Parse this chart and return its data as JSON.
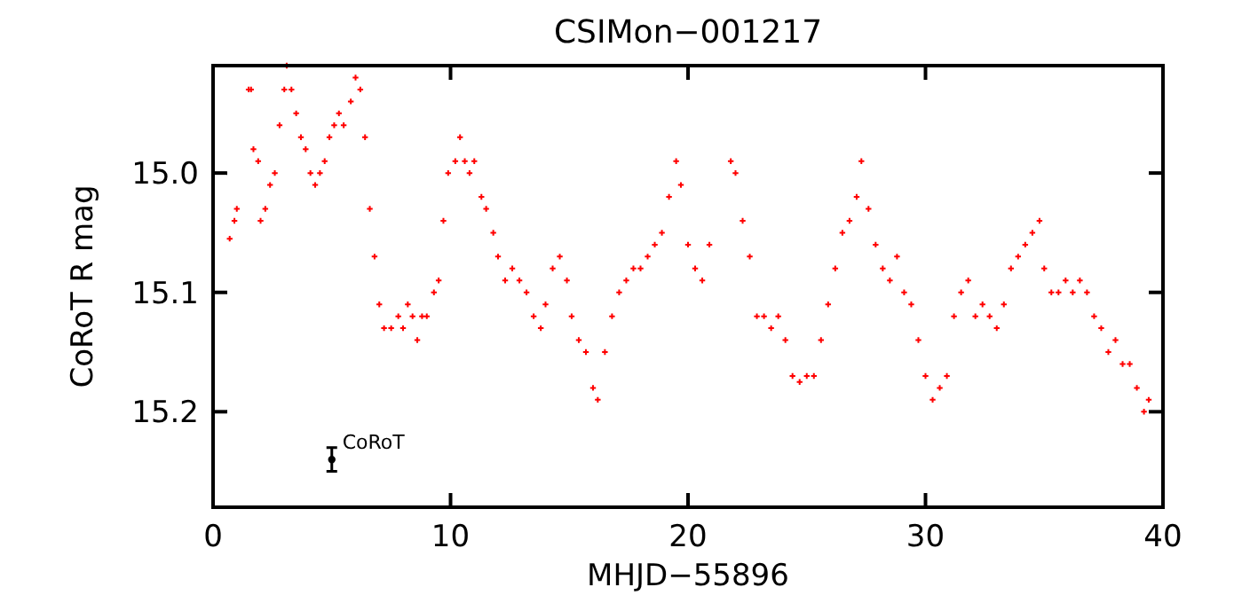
{
  "chart_data": {
    "type": "scatter",
    "title": "CSIMon−001217",
    "xlabel": "MHJD−55896",
    "ylabel": "CoRoT R mag",
    "xlim": [
      0,
      40
    ],
    "ylim": [
      15.28,
      14.91
    ],
    "xticks": [
      0,
      10,
      20,
      30,
      40
    ],
    "yticks": [
      {
        "value": 15.0,
        "label": "15.0"
      },
      {
        "value": 15.1,
        "label": "15.1"
      },
      {
        "value": 15.2,
        "label": "15.2"
      }
    ],
    "marker": "cross",
    "grid": false,
    "series": [
      {
        "color": "#ff0000",
        "x": [
          0.7,
          0.9,
          1.0,
          1.5,
          1.6,
          1.7,
          1.9,
          2.0,
          2.2,
          2.4,
          2.6,
          2.8,
          3.0,
          3.1,
          3.3,
          3.5,
          3.7,
          3.9,
          4.1,
          4.3,
          4.5,
          4.7,
          4.9,
          5.1,
          5.3,
          5.5,
          5.8,
          6.0,
          6.2,
          6.4,
          6.6,
          6.8,
          7.0,
          7.2,
          7.5,
          7.8,
          8.0,
          8.2,
          8.4,
          8.6,
          8.8,
          9.0,
          9.3,
          9.5,
          9.7,
          9.9,
          10.2,
          10.4,
          10.6,
          10.8,
          11.0,
          11.3,
          11.5,
          11.8,
          12.0,
          12.3,
          12.6,
          12.9,
          13.2,
          13.5,
          13.8,
          14.0,
          14.3,
          14.6,
          14.9,
          15.1,
          15.4,
          15.7,
          16.0,
          16.2,
          16.5,
          16.8,
          17.1,
          17.4,
          17.7,
          18.0,
          18.3,
          18.6,
          18.9,
          19.2,
          19.5,
          19.7,
          20.0,
          20.3,
          20.6,
          20.9,
          21.8,
          22.0,
          22.3,
          22.6,
          22.9,
          23.2,
          23.5,
          23.8,
          24.1,
          24.4,
          24.7,
          25.0,
          25.3,
          25.6,
          25.9,
          26.2,
          26.5,
          26.8,
          27.1,
          27.3,
          27.6,
          27.9,
          28.2,
          28.5,
          28.8,
          29.1,
          29.4,
          29.7,
          30.0,
          30.3,
          30.6,
          30.9,
          31.2,
          31.5,
          31.8,
          32.1,
          32.4,
          32.7,
          33.0,
          33.3,
          33.6,
          33.9,
          34.2,
          34.5,
          34.8,
          35.0,
          35.3,
          35.6,
          35.9,
          36.2,
          36.5,
          36.8,
          37.1,
          37.4,
          37.7,
          38.0,
          38.3,
          38.6,
          38.9,
          39.2,
          39.4
        ],
        "values": [
          15.055,
          15.04,
          15.03,
          14.93,
          14.93,
          14.98,
          14.99,
          15.04,
          15.03,
          15.01,
          15.0,
          14.96,
          14.93,
          14.91,
          14.93,
          14.95,
          14.97,
          14.98,
          15.0,
          15.01,
          15.0,
          14.99,
          14.97,
          14.96,
          14.95,
          14.96,
          14.94,
          14.92,
          14.93,
          14.97,
          15.03,
          15.07,
          15.11,
          15.13,
          15.13,
          15.12,
          15.13,
          15.11,
          15.12,
          15.14,
          15.12,
          15.12,
          15.1,
          15.09,
          15.04,
          15.0,
          14.99,
          14.97,
          14.99,
          15.0,
          14.99,
          15.02,
          15.03,
          15.05,
          15.07,
          15.09,
          15.08,
          15.09,
          15.1,
          15.12,
          15.13,
          15.11,
          15.08,
          15.07,
          15.09,
          15.12,
          15.14,
          15.15,
          15.18,
          15.19,
          15.15,
          15.12,
          15.1,
          15.09,
          15.08,
          15.08,
          15.07,
          15.06,
          15.05,
          15.02,
          14.99,
          15.01,
          15.06,
          15.08,
          15.09,
          15.06,
          14.99,
          15.0,
          15.04,
          15.07,
          15.12,
          15.12,
          15.13,
          15.12,
          15.14,
          15.17,
          15.175,
          15.17,
          15.17,
          15.14,
          15.11,
          15.08,
          15.05,
          15.04,
          15.02,
          14.99,
          15.03,
          15.06,
          15.08,
          15.09,
          15.07,
          15.1,
          15.11,
          15.14,
          15.17,
          15.19,
          15.18,
          15.17,
          15.12,
          15.1,
          15.09,
          15.12,
          15.11,
          15.12,
          15.13,
          15.11,
          15.08,
          15.07,
          15.06,
          15.05,
          15.04,
          15.08,
          15.1,
          15.1,
          15.09,
          15.1,
          15.09,
          15.1,
          15.12,
          15.13,
          15.15,
          15.14,
          15.16,
          15.16,
          15.18,
          15.2,
          15.19
        ]
      },
      {
        "name": "CoRoT",
        "type": "scatter",
        "marker": "circle",
        "color": "#000000",
        "x": [
          5
        ],
        "values": [
          15.24
        ],
        "errors": [
          0.01
        ]
      }
    ]
  }
}
